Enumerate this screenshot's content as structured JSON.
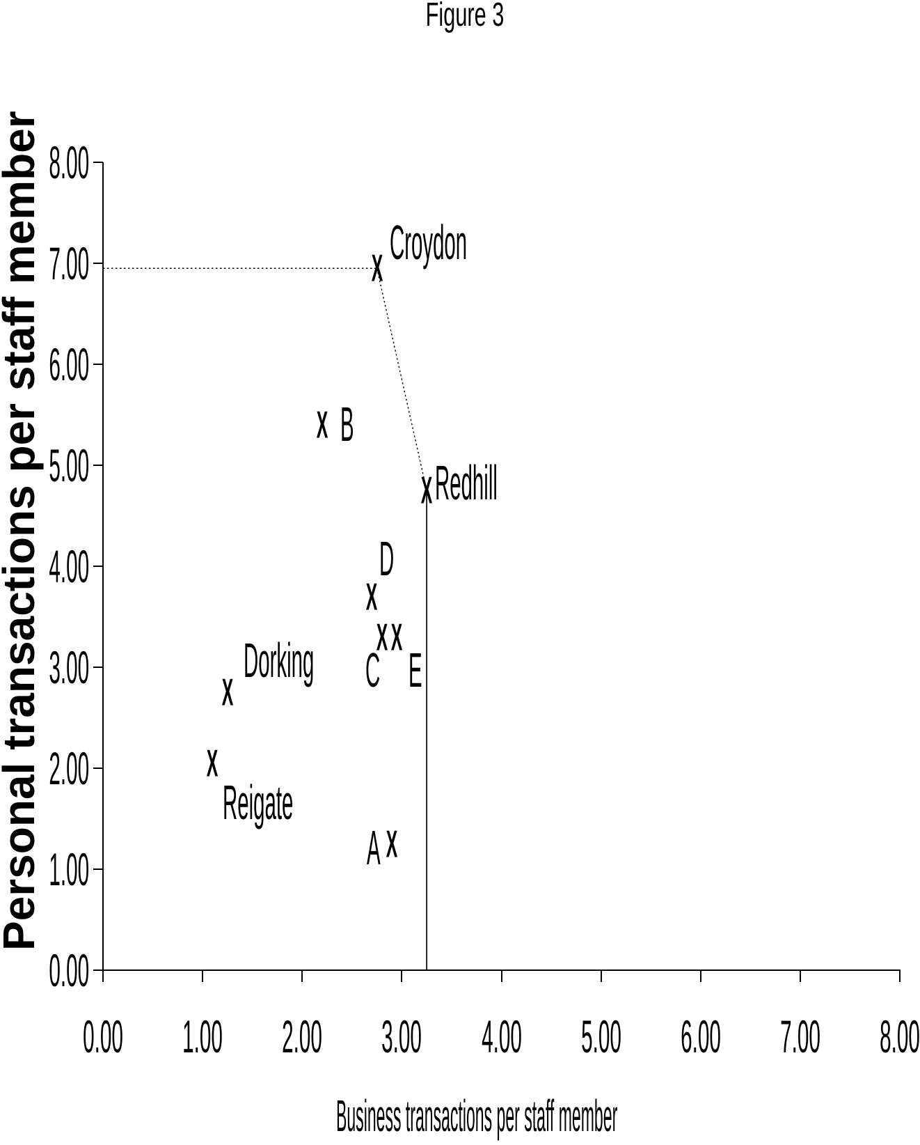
{
  "colors": {
    "ink": "#000000",
    "background": "#ffffff"
  },
  "chart_data": {
    "type": "scatter",
    "title": "Figure 3",
    "xlabel": "Business transactions per staff member",
    "ylabel": "Personal transactions per staff member",
    "xlim": [
      0,
      8
    ],
    "ylim": [
      0,
      8
    ],
    "grid": false,
    "legend": null,
    "marker_glyph": "X",
    "xticks": {
      "values": [
        0,
        1,
        2,
        3,
        4,
        5,
        6,
        7,
        8
      ],
      "labels": [
        "0.00",
        "1.00",
        "2.00",
        "3.00",
        "4.00",
        "5.00",
        "6.00",
        "7.00",
        "8.00"
      ]
    },
    "yticks": {
      "values": [
        0,
        1,
        2,
        3,
        4,
        5,
        6,
        7,
        8
      ],
      "labels": [
        "0.00",
        "1.00",
        "2.00",
        "3.00",
        "4.00",
        "5.00",
        "6.00",
        "7.00",
        "8.00"
      ]
    },
    "points": [
      {
        "label": "Croydon",
        "x": 2.75,
        "y": 6.95
      },
      {
        "label": "B",
        "x": 2.2,
        "y": 5.4
      },
      {
        "label": "Redhill",
        "x": 3.25,
        "y": 4.75
      },
      {
        "label": "D",
        "x": 2.7,
        "y": 3.7
      },
      {
        "label": "C",
        "x": 2.8,
        "y": 3.3
      },
      {
        "label": "E",
        "x": 2.95,
        "y": 3.3
      },
      {
        "label": "Dorking",
        "x": 1.25,
        "y": 2.75
      },
      {
        "label": "Reigate",
        "x": 1.1,
        "y": 2.05
      },
      {
        "label": "A",
        "x": 2.9,
        "y": 1.25
      }
    ],
    "annotation_lines": [
      {
        "from": [
          0.0,
          6.95
        ],
        "to": [
          2.75,
          6.95
        ],
        "style": "dotted"
      },
      {
        "from": [
          2.75,
          6.95
        ],
        "to": [
          3.25,
          4.75
        ],
        "style": "dotted"
      },
      {
        "from": [
          3.25,
          4.75
        ],
        "to": [
          3.25,
          0.0
        ],
        "style": "solid"
      }
    ]
  }
}
